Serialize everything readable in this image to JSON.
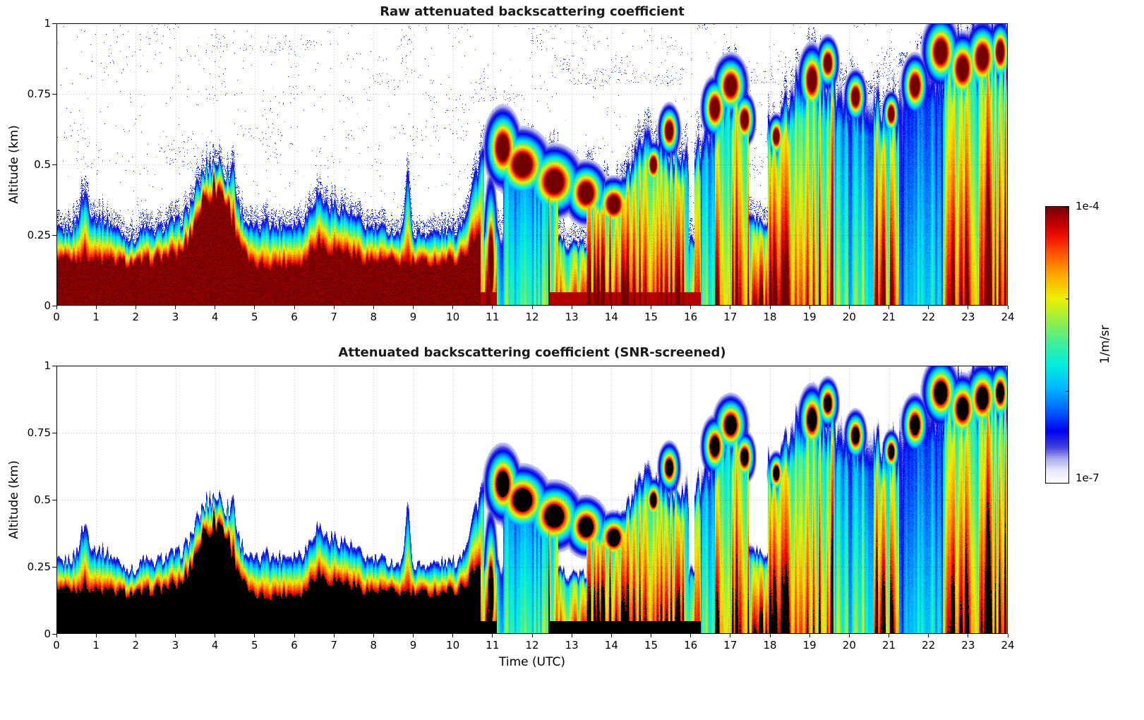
{
  "page": {
    "background": "#ffffff"
  },
  "panels": [
    {
      "id": "raw",
      "title": "Raw attenuated backscattering coefficient",
      "ylabel": "Altitude (km)",
      "snr_screened": false,
      "speckle": true
    },
    {
      "id": "screened",
      "title": "Attenuated backscattering coefficient (SNR-screened)",
      "ylabel": "Altitude (km)",
      "xlabel": "Time (UTC)",
      "snr_screened": true,
      "speckle": false
    }
  ],
  "axes": {
    "x_tick_labels": [
      "0",
      "1",
      "2",
      "3",
      "4",
      "5",
      "6",
      "7",
      "8",
      "9",
      "10",
      "11",
      "12",
      "13",
      "14",
      "15",
      "16",
      "17",
      "18",
      "19",
      "20",
      "21",
      "22",
      "23",
      "24"
    ],
    "y_ticks": [
      {
        "v": 1,
        "label": "1"
      },
      {
        "v": 0.75,
        "label": "0.75"
      },
      {
        "v": 0.5,
        "label": "0.5"
      },
      {
        "v": 0.25,
        "label": "0.25"
      },
      {
        "v": 0,
        "label": "0"
      }
    ]
  },
  "colorbar": {
    "top_label": "1e-4",
    "bottom_label": "1e-7",
    "unit_label": "1/m/sr",
    "stops": [
      [
        0.0,
        "#FFFFFF"
      ],
      [
        0.05,
        "#E6E6FA"
      ],
      [
        0.09,
        "#AAAAEE"
      ],
      [
        0.13,
        "#4444DD"
      ],
      [
        0.19,
        "#0000EE"
      ],
      [
        0.27,
        "#0066FF"
      ],
      [
        0.35,
        "#00BBFF"
      ],
      [
        0.43,
        "#00EEDD"
      ],
      [
        0.51,
        "#44EE99"
      ],
      [
        0.59,
        "#99EE44"
      ],
      [
        0.67,
        "#EEEE00"
      ],
      [
        0.75,
        "#FFAA00"
      ],
      [
        0.83,
        "#FF5500"
      ],
      [
        0.89,
        "#EE1100"
      ],
      [
        0.94,
        "#C00000"
      ],
      [
        1.0,
        "#730000"
      ]
    ]
  },
  "chart_data": {
    "type": "heatmap",
    "panel_titles": [
      "Raw attenuated backscattering coefficient",
      "Attenuated backscattering coefficient (SNR-screened)"
    ],
    "x_label": "Time (UTC)",
    "x_range": [
      0,
      24
    ],
    "x_ticks": [
      0,
      1,
      2,
      3,
      4,
      5,
      6,
      7,
      8,
      9,
      10,
      11,
      12,
      13,
      14,
      15,
      16,
      17,
      18,
      19,
      20,
      21,
      22,
      23,
      24
    ],
    "y_label": "Altitude (km)",
    "y_range": [
      0,
      1
    ],
    "y_ticks": [
      0,
      0.25,
      0.5,
      0.75,
      1
    ],
    "value_unit": "1/m/sr",
    "value_scale": "log",
    "value_min": 1e-07,
    "value_max": 0.0001,
    "grid": "dotted",
    "convective_start_utc": 10.7,
    "aerosol_layer": {
      "hours": [
        0,
        1,
        2,
        3,
        4,
        5,
        6,
        7,
        8,
        9,
        10,
        11,
        12,
        13,
        14,
        15,
        16,
        17,
        18,
        19,
        20,
        21,
        22,
        23,
        24
      ],
      "layer_top_km": [
        0.27,
        0.32,
        0.24,
        0.3,
        0.52,
        0.28,
        0.3,
        0.36,
        0.28,
        0.26,
        0.27,
        0.62,
        0.56,
        0.52,
        0.42,
        0.6,
        0.55,
        0.82,
        0.65,
        0.88,
        0.78,
        0.72,
        0.88,
        0.97,
        0.97
      ],
      "core_top_km": [
        0.17,
        0.16,
        0.15,
        0.18,
        0.42,
        0.14,
        0.15,
        0.2,
        0.16,
        0.15,
        0.16,
        0.3,
        0.28,
        0.3,
        0.22,
        0.28,
        0.26,
        0.3,
        0.25,
        0.3,
        0.28,
        0.25,
        0.3,
        0.35,
        0.35
      ]
    },
    "plumes": [
      {
        "t": 0.7,
        "w": 0.15,
        "dh": 0.1,
        "dc": 0.02
      },
      {
        "t": 2.2,
        "w": 0.12,
        "dh": 0.04,
        "dc": 0.0
      },
      {
        "t": 4.45,
        "w": 0.07,
        "dh": 0.1,
        "dc": 0.0
      },
      {
        "t": 5.3,
        "w": 0.06,
        "dh": 0.06,
        "dc": 0.0
      },
      {
        "t": 6.55,
        "w": 0.2,
        "dh": 0.07,
        "dc": 0.05
      },
      {
        "t": 8.85,
        "w": 0.07,
        "dh": 0.28,
        "dc": 0.0
      }
    ],
    "clouds": [
      {
        "t": 10.95,
        "w": 0.12,
        "z": 0.15,
        "h": 0.2
      },
      {
        "t": 11.25,
        "w": 0.3,
        "z": 0.56,
        "h": 0.09
      },
      {
        "t": 11.75,
        "w": 0.45,
        "z": 0.5,
        "h": 0.08
      },
      {
        "t": 12.55,
        "w": 0.45,
        "z": 0.44,
        "h": 0.08
      },
      {
        "t": 13.35,
        "w": 0.35,
        "z": 0.4,
        "h": 0.07
      },
      {
        "t": 14.05,
        "w": 0.3,
        "z": 0.36,
        "h": 0.06
      },
      {
        "t": 15.05,
        "w": 0.15,
        "z": 0.5,
        "h": 0.05
      },
      {
        "t": 15.45,
        "w": 0.18,
        "z": 0.62,
        "h": 0.06
      },
      {
        "t": 16.6,
        "w": 0.22,
        "z": 0.7,
        "h": 0.07
      },
      {
        "t": 17.0,
        "w": 0.28,
        "z": 0.78,
        "h": 0.07
      },
      {
        "t": 17.35,
        "w": 0.18,
        "z": 0.66,
        "h": 0.06
      },
      {
        "t": 18.15,
        "w": 0.14,
        "z": 0.6,
        "h": 0.05
      },
      {
        "t": 19.05,
        "w": 0.22,
        "z": 0.8,
        "h": 0.08
      },
      {
        "t": 19.45,
        "w": 0.18,
        "z": 0.86,
        "h": 0.06
      },
      {
        "t": 20.15,
        "w": 0.18,
        "z": 0.74,
        "h": 0.06
      },
      {
        "t": 21.05,
        "w": 0.14,
        "z": 0.68,
        "h": 0.05
      },
      {
        "t": 21.65,
        "w": 0.22,
        "z": 0.78,
        "h": 0.07
      },
      {
        "t": 22.3,
        "w": 0.3,
        "z": 0.9,
        "h": 0.08
      },
      {
        "t": 22.85,
        "w": 0.28,
        "z": 0.84,
        "h": 0.08
      },
      {
        "t": 23.35,
        "w": 0.28,
        "z": 0.88,
        "h": 0.08
      },
      {
        "t": 23.8,
        "w": 0.18,
        "z": 0.9,
        "h": 0.07
      }
    ],
    "cool_regions": [
      {
        "t0": 11.1,
        "t1": 12.4,
        "z_top": 0.42,
        "factor": 0.55
      },
      {
        "t0": 16.25,
        "t1": 16.6,
        "z_top": 0.62,
        "factor": 0.5
      },
      {
        "t0": 19.6,
        "t1": 20.6,
        "z_top": 0.75,
        "factor": 0.6
      },
      {
        "t0": 21.25,
        "t1": 22.35,
        "z_top": 0.85,
        "factor": 0.42
      }
    ]
  }
}
